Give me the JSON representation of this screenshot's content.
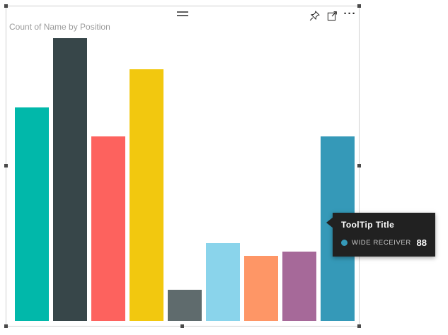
{
  "visual": {
    "title": "Count of Name by Position"
  },
  "icons": {
    "more_options_glyph": "···"
  },
  "tooltip": {
    "title": "ToolTip Title",
    "series_label": "WIDE RECEIVER",
    "value": "88",
    "marker_color": "#3599B8",
    "background_color": "#212121"
  },
  "chart_data": {
    "type": "bar",
    "title": "Count of Name by Position",
    "categories": [
      "",
      "",
      "",
      "",
      "",
      "",
      "",
      "",
      "WIDE RECEIVER"
    ],
    "values": [
      102,
      135,
      88,
      120,
      15,
      37,
      31,
      33,
      88
    ],
    "colors": [
      "#01B8AA",
      "#374649",
      "#FD625E",
      "#F2C80F",
      "#5F6B6D",
      "#8AD4EB",
      "#FE9666",
      "#A66999",
      "#3599B8"
    ],
    "xlabel": "",
    "ylabel": "",
    "ylim": [
      0,
      135
    ],
    "grid": false,
    "legend": false,
    "hovered_bar": {
      "category": "WIDE RECEIVER",
      "value": 88,
      "color": "#3599B8"
    }
  }
}
